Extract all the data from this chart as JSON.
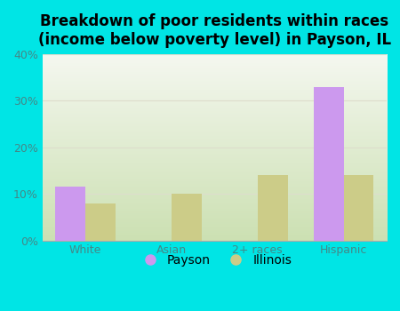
{
  "title": "Breakdown of poor residents within races\n(income below poverty level) in Payson, IL",
  "categories": [
    "White",
    "Asian",
    "2+ races",
    "Hispanic"
  ],
  "payson_values": [
    11.5,
    0,
    0,
    33.0
  ],
  "illinois_values": [
    8.0,
    10.0,
    14.0,
    14.0
  ],
  "payson_color": "#cc99ee",
  "illinois_color": "#cccc88",
  "background_color": "#00e5e5",
  "plot_bg_top": "#f5f5ee",
  "plot_bg_bottom": "#ccddb0",
  "ylim": [
    0,
    40
  ],
  "yticks": [
    0,
    10,
    20,
    30,
    40
  ],
  "ytick_labels": [
    "0%",
    "10%",
    "20%",
    "30%",
    "40%"
  ],
  "bar_width": 0.35,
  "title_fontsize": 12,
  "tick_fontsize": 9,
  "legend_fontsize": 10,
  "axis_label_color": "#448888",
  "grid_color": "#ddddcc"
}
